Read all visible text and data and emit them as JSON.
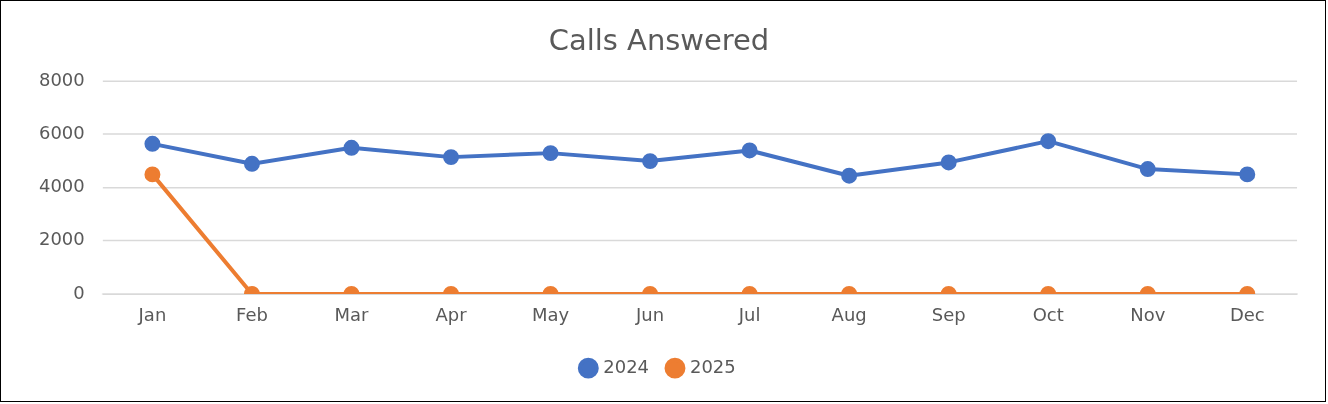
{
  "chart_data": {
    "type": "line",
    "title": "Calls Answered",
    "categories": [
      "Jan",
      "Feb",
      "Mar",
      "Apr",
      "May",
      "Jun",
      "Jul",
      "Aug",
      "Sep",
      "Oct",
      "Nov",
      "Dec"
    ],
    "series": [
      {
        "name": "2024",
        "color": "#4472c4",
        "values": [
          5650,
          4900,
          5500,
          5150,
          5300,
          5000,
          5400,
          4450,
          4950,
          5750,
          4700,
          4500
        ]
      },
      {
        "name": "2025",
        "color": "#ed7d31",
        "values": [
          4500,
          0,
          0,
          0,
          0,
          0,
          0,
          0,
          0,
          0,
          0,
          0
        ]
      }
    ],
    "ylim": [
      0,
      8000
    ],
    "yticks": [
      0,
      2000,
      4000,
      6000,
      8000
    ],
    "grid": "y",
    "legend": "bottom",
    "marker": "circle",
    "line_style": "solid"
  }
}
